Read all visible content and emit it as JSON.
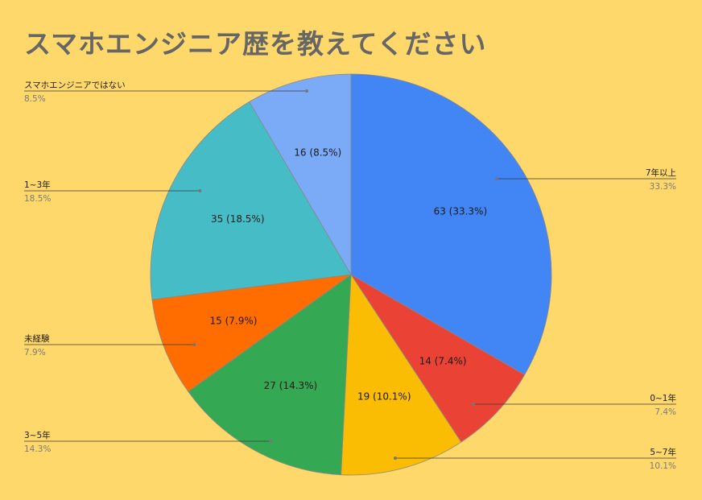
{
  "chart_data": {
    "type": "pie",
    "title": "スマホエンジニア歴を教えてください",
    "slices": [
      {
        "name": "7年以上",
        "value": 63,
        "label": "63 (33.3%)",
        "percent_label": "33.3%",
        "color": "#4285f4"
      },
      {
        "name": "0~1年",
        "value": 14,
        "label": "14 (7.4%)",
        "percent_label": "7.4%",
        "color": "#ea4335"
      },
      {
        "name": "5~7年",
        "value": 19,
        "label": "19 (10.1%)",
        "percent_label": "10.1%",
        "color": "#fbbc04"
      },
      {
        "name": "3~5年",
        "value": 27,
        "label": "27 (14.3%)",
        "percent_label": "14.3%",
        "color": "#34a853"
      },
      {
        "name": "未経験",
        "value": 15,
        "label": "15 (7.9%)",
        "percent_label": "7.9%",
        "color": "#ff6d01"
      },
      {
        "name": "1~3年",
        "value": 35,
        "label": "35 (18.5%)",
        "percent_label": "18.5%",
        "color": "#46bdc6"
      },
      {
        "name": "スマホエンジニアではない",
        "value": 16,
        "label": "16 (8.5%)",
        "percent_label": "8.5%",
        "color": "#7baaf7"
      }
    ]
  }
}
